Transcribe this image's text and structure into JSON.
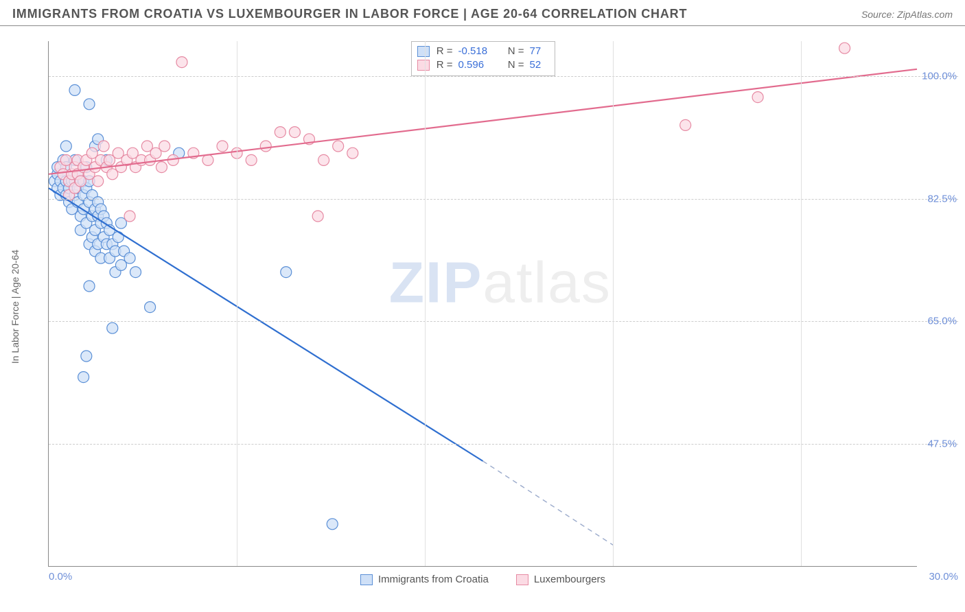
{
  "header": {
    "title": "IMMIGRANTS FROM CROATIA VS LUXEMBOURGER IN LABOR FORCE | AGE 20-64 CORRELATION CHART",
    "source_prefix": "Source: ",
    "source": "ZipAtlas.com"
  },
  "chart": {
    "type": "scatter",
    "yaxis_label": "In Labor Force | Age 20-64",
    "xlim": [
      0.0,
      30.0
    ],
    "ylim": [
      30.0,
      105.0
    ],
    "yticks": [
      47.5,
      65.0,
      82.5,
      100.0
    ],
    "ytick_labels": [
      "47.5%",
      "65.0%",
      "82.5%",
      "100.0%"
    ],
    "xtick_start": "0.0%",
    "xtick_end": "30.0%",
    "xgrid_vals": [
      6.5,
      13.0,
      19.5,
      26.0
    ],
    "background_color": "#ffffff",
    "grid_color": "#cccccc",
    "axis_color": "#888888",
    "tick_color": "#6e8fd8",
    "marker_radius": 8,
    "marker_stroke_width": 1.2,
    "line_width": 2.2
  },
  "series": [
    {
      "id": "croatia",
      "label": "Immigrants from Croatia",
      "fill": "#cfe0f7",
      "stroke": "#5a8fd6",
      "line_color": "#2f6fd0",
      "dash_color": "#9aaacb",
      "R": "-0.518",
      "N": "77",
      "trend": {
        "x1": 0.0,
        "y1": 84.0,
        "x2": 15.0,
        "y2": 45.0
      },
      "trend_dash": {
        "x1": 15.0,
        "y1": 45.0,
        "x2": 19.5,
        "y2": 33.0
      },
      "points": [
        [
          0.2,
          85
        ],
        [
          0.3,
          86
        ],
        [
          0.3,
          87
        ],
        [
          0.3,
          84
        ],
        [
          0.4,
          83
        ],
        [
          0.4,
          85
        ],
        [
          0.5,
          86
        ],
        [
          0.5,
          84
        ],
        [
          0.5,
          88
        ],
        [
          0.6,
          85
        ],
        [
          0.6,
          83
        ],
        [
          0.6,
          87
        ],
        [
          0.7,
          85
        ],
        [
          0.7,
          82
        ],
        [
          0.7,
          84
        ],
        [
          0.8,
          85
        ],
        [
          0.8,
          81
        ],
        [
          0.8,
          86
        ],
        [
          0.9,
          83
        ],
        [
          0.9,
          85
        ],
        [
          0.9,
          88
        ],
        [
          1.0,
          84
        ],
        [
          1.0,
          82
        ],
        [
          1.0,
          86
        ],
        [
          1.1,
          85
        ],
        [
          1.1,
          80
        ],
        [
          1.1,
          78
        ],
        [
          1.2,
          83
        ],
        [
          1.2,
          85
        ],
        [
          1.2,
          81
        ],
        [
          1.3,
          84
        ],
        [
          1.3,
          79
        ],
        [
          1.3,
          87
        ],
        [
          1.4,
          82
        ],
        [
          1.4,
          76
        ],
        [
          1.4,
          85
        ],
        [
          1.5,
          80
        ],
        [
          1.5,
          77
        ],
        [
          1.5,
          83
        ],
        [
          1.6,
          81
        ],
        [
          1.6,
          78
        ],
        [
          1.6,
          75
        ],
        [
          1.7,
          80
        ],
        [
          1.7,
          82
        ],
        [
          1.7,
          76
        ],
        [
          1.8,
          79
        ],
        [
          1.8,
          74
        ],
        [
          1.8,
          81
        ],
        [
          1.9,
          77
        ],
        [
          1.9,
          80
        ],
        [
          2.0,
          76
        ],
        [
          2.0,
          79
        ],
        [
          2.1,
          74
        ],
        [
          2.1,
          78
        ],
        [
          2.2,
          76
        ],
        [
          2.3,
          75
        ],
        [
          2.3,
          72
        ],
        [
          2.4,
          77
        ],
        [
          2.5,
          73
        ],
        [
          2.5,
          79
        ],
        [
          2.6,
          75
        ],
        [
          2.8,
          74
        ],
        [
          3.0,
          72
        ],
        [
          0.9,
          98
        ],
        [
          1.4,
          96
        ],
        [
          1.6,
          90
        ],
        [
          1.7,
          91
        ],
        [
          2.0,
          88
        ],
        [
          4.5,
          89
        ],
        [
          1.4,
          70
        ],
        [
          2.2,
          64
        ],
        [
          3.5,
          67
        ],
        [
          1.3,
          60
        ],
        [
          1.2,
          57
        ],
        [
          8.2,
          72
        ],
        [
          9.8,
          36
        ],
        [
          0.6,
          90
        ]
      ]
    },
    {
      "id": "luxembourg",
      "label": "Luxembourgers",
      "fill": "#fbdbe4",
      "stroke": "#e68aa3",
      "line_color": "#e26b8e",
      "R": "0.596",
      "N": "52",
      "trend": {
        "x1": 0.0,
        "y1": 86.0,
        "x2": 30.0,
        "y2": 101.0
      },
      "points": [
        [
          0.4,
          87
        ],
        [
          0.5,
          86
        ],
        [
          0.6,
          88
        ],
        [
          0.7,
          83
        ],
        [
          0.7,
          85
        ],
        [
          0.8,
          86
        ],
        [
          0.9,
          87
        ],
        [
          0.9,
          84
        ],
        [
          1.0,
          88
        ],
        [
          1.0,
          86
        ],
        [
          1.1,
          85
        ],
        [
          1.2,
          87
        ],
        [
          1.3,
          88
        ],
        [
          1.4,
          86
        ],
        [
          1.5,
          89
        ],
        [
          1.6,
          87
        ],
        [
          1.7,
          85
        ],
        [
          1.8,
          88
        ],
        [
          1.9,
          90
        ],
        [
          2.0,
          87
        ],
        [
          2.1,
          88
        ],
        [
          2.2,
          86
        ],
        [
          2.4,
          89
        ],
        [
          2.5,
          87
        ],
        [
          2.7,
          88
        ],
        [
          2.8,
          80
        ],
        [
          2.9,
          89
        ],
        [
          3.0,
          87
        ],
        [
          3.2,
          88
        ],
        [
          3.4,
          90
        ],
        [
          3.5,
          88
        ],
        [
          3.7,
          89
        ],
        [
          3.9,
          87
        ],
        [
          4.0,
          90
        ],
        [
          4.3,
          88
        ],
        [
          4.6,
          102
        ],
        [
          5.0,
          89
        ],
        [
          5.5,
          88
        ],
        [
          6.0,
          90
        ],
        [
          6.5,
          89
        ],
        [
          7.0,
          88
        ],
        [
          7.5,
          90
        ],
        [
          8.0,
          92
        ],
        [
          8.5,
          92
        ],
        [
          9.0,
          91
        ],
        [
          9.3,
          80
        ],
        [
          9.5,
          88
        ],
        [
          10.0,
          90
        ],
        [
          10.5,
          89
        ],
        [
          22.0,
          93
        ],
        [
          24.5,
          97
        ],
        [
          27.5,
          104
        ]
      ]
    }
  ],
  "legend": {
    "items": [
      "Immigrants from Croatia",
      "Luxembourgers"
    ]
  },
  "correlation_box": {
    "rows": [
      {
        "swatch_fill": "#cfe0f7",
        "swatch_stroke": "#5a8fd6",
        "R": "-0.518",
        "N": "77"
      },
      {
        "swatch_fill": "#fbdbe4",
        "swatch_stroke": "#e68aa3",
        "R": "0.596",
        "N": "52"
      }
    ],
    "labels": {
      "R": "R =",
      "N": "N ="
    }
  },
  "watermark": {
    "prefix": "ZIP",
    "suffix": "atlas"
  }
}
